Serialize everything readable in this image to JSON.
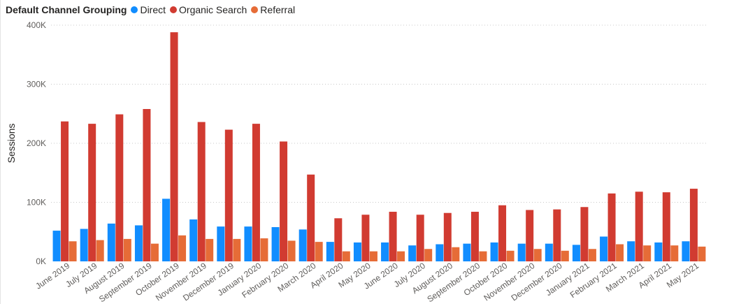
{
  "legend": {
    "title": "Default Channel Grouping"
  },
  "chart_data": {
    "type": "bar",
    "ylabel": "Sessions",
    "xlabel": "",
    "ylim": [
      0,
      400000
    ],
    "yticks": [
      0,
      100000,
      200000,
      300000,
      400000
    ],
    "ytick_labels": [
      "0K",
      "100K",
      "200K",
      "300K",
      "400K"
    ],
    "grid": "horizontal dotted",
    "legend_position": "top-left",
    "categories": [
      "June 2019",
      "July 2019",
      "August 2019",
      "September 2019",
      "October 2019",
      "November 2019",
      "December 2019",
      "January 2020",
      "February 2020",
      "March 2020",
      "April 2020",
      "May 2020",
      "June 2020",
      "July 2020",
      "August 2020",
      "September 2020",
      "October 2020",
      "November 2020",
      "December 2020",
      "January 2021",
      "February 2021",
      "March 2021",
      "April 2021",
      "May 2021"
    ],
    "series": [
      {
        "name": "Direct",
        "color": "#118DFF",
        "values": [
          52000,
          55000,
          64000,
          61000,
          106000,
          71000,
          59000,
          59000,
          58000,
          54000,
          33000,
          32000,
          32000,
          27000,
          29000,
          30000,
          32000,
          30000,
          30000,
          28000,
          42000,
          34000,
          32000,
          34000
        ]
      },
      {
        "name": "Organic Search",
        "color": "#D13B31",
        "values": [
          237000,
          233000,
          249000,
          258000,
          388000,
          236000,
          223000,
          233000,
          203000,
          147000,
          73000,
          79000,
          84000,
          79000,
          82000,
          84000,
          95000,
          87000,
          88000,
          92000,
          115000,
          118000,
          117000,
          123000
        ]
      },
      {
        "name": "Referral",
        "color": "#E66C37",
        "values": [
          34000,
          36000,
          38000,
          30000,
          44000,
          38000,
          38000,
          39000,
          35000,
          33000,
          17000,
          17000,
          17000,
          21000,
          24000,
          17000,
          18000,
          21000,
          18000,
          21000,
          29000,
          27000,
          27000,
          25000
        ]
      }
    ]
  }
}
